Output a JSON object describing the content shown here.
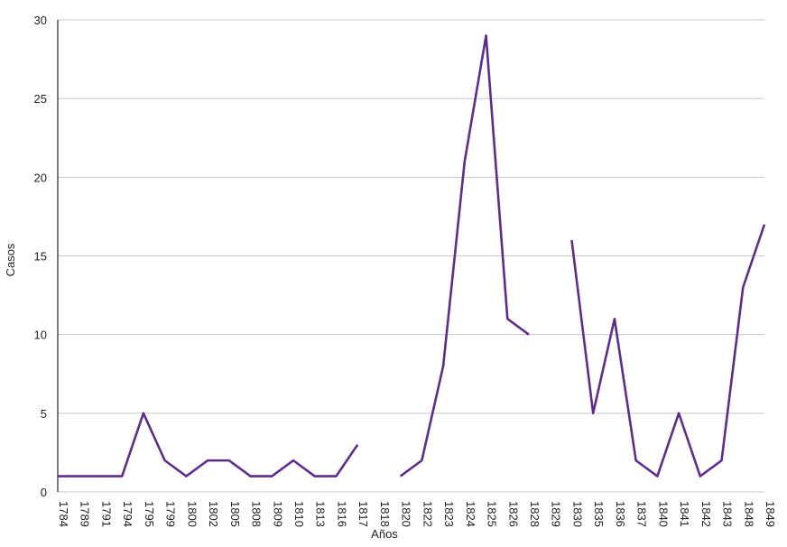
{
  "chart_data": {
    "type": "line",
    "x_label": "Años",
    "y_label": "Casos",
    "categories": [
      "1784",
      "1789",
      "1791",
      "1794",
      "1795",
      "1799",
      "1800",
      "1802",
      "1805",
      "1808",
      "1809",
      "1810",
      "1813",
      "1816",
      "1817",
      "1818",
      "1820",
      "1822",
      "1823",
      "1824",
      "1825",
      "1826",
      "1828",
      "1829",
      "1830",
      "1835",
      "1836",
      "1837",
      "1840",
      "1841",
      "1842",
      "1843",
      "1848",
      "1849"
    ],
    "series": [
      {
        "name": "Casos",
        "color": "#5e2d8c",
        "values": [
          1,
          1,
          1,
          1,
          5,
          2,
          1,
          2,
          2,
          1,
          1,
          2,
          1,
          1,
          3,
          null,
          1,
          2,
          8,
          21,
          29,
          11,
          10,
          null,
          16,
          5,
          11,
          2,
          1,
          5,
          1,
          2,
          13,
          17
        ]
      }
    ],
    "ylim": [
      0,
      30
    ],
    "yticks": [
      0,
      5,
      10,
      15,
      20,
      25,
      30
    ],
    "grid": true
  }
}
